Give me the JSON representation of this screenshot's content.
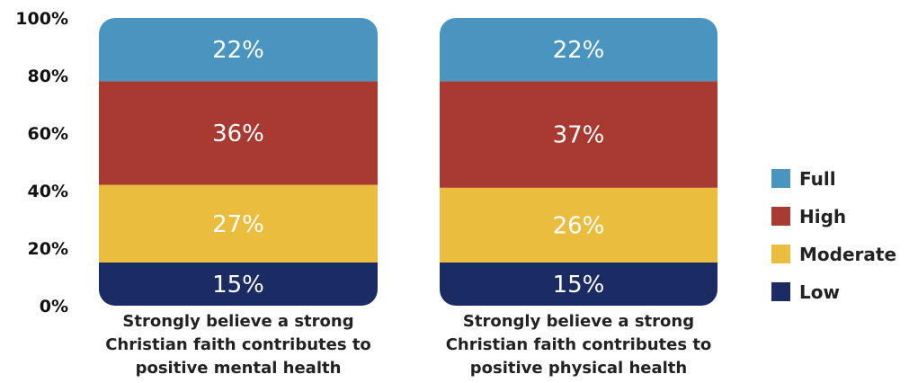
{
  "chart_data": {
    "type": "bar",
    "stacked": true,
    "categories": [
      [
        "Strongly believe a strong",
        "Christian faith contributes to",
        "positive mental health"
      ],
      [
        "Strongly believe a strong",
        "Christian faith contributes to",
        "positive physical health"
      ]
    ],
    "series": [
      {
        "name": "Low",
        "color": "#1b2b63",
        "values": [
          15,
          15
        ],
        "labels": [
          "15%",
          "15%"
        ]
      },
      {
        "name": "Moderate",
        "color": "#ebbd3f",
        "values": [
          27,
          26
        ],
        "labels": [
          "27%",
          "26%"
        ]
      },
      {
        "name": "High",
        "color": "#a93a31",
        "values": [
          36,
          37
        ],
        "labels": [
          "36%",
          "37%"
        ]
      },
      {
        "name": "Full",
        "color": "#4a95bf",
        "values": [
          22,
          22
        ],
        "labels": [
          "22%",
          "22%"
        ]
      }
    ],
    "yticks": [
      "0%",
      "20%",
      "40%",
      "60%",
      "80%",
      "100%"
    ],
    "ylim": [
      0,
      100
    ],
    "legend": {
      "placement": "right",
      "order": [
        "Full",
        "High",
        "Moderate",
        "Low"
      ]
    },
    "grid": false
  }
}
